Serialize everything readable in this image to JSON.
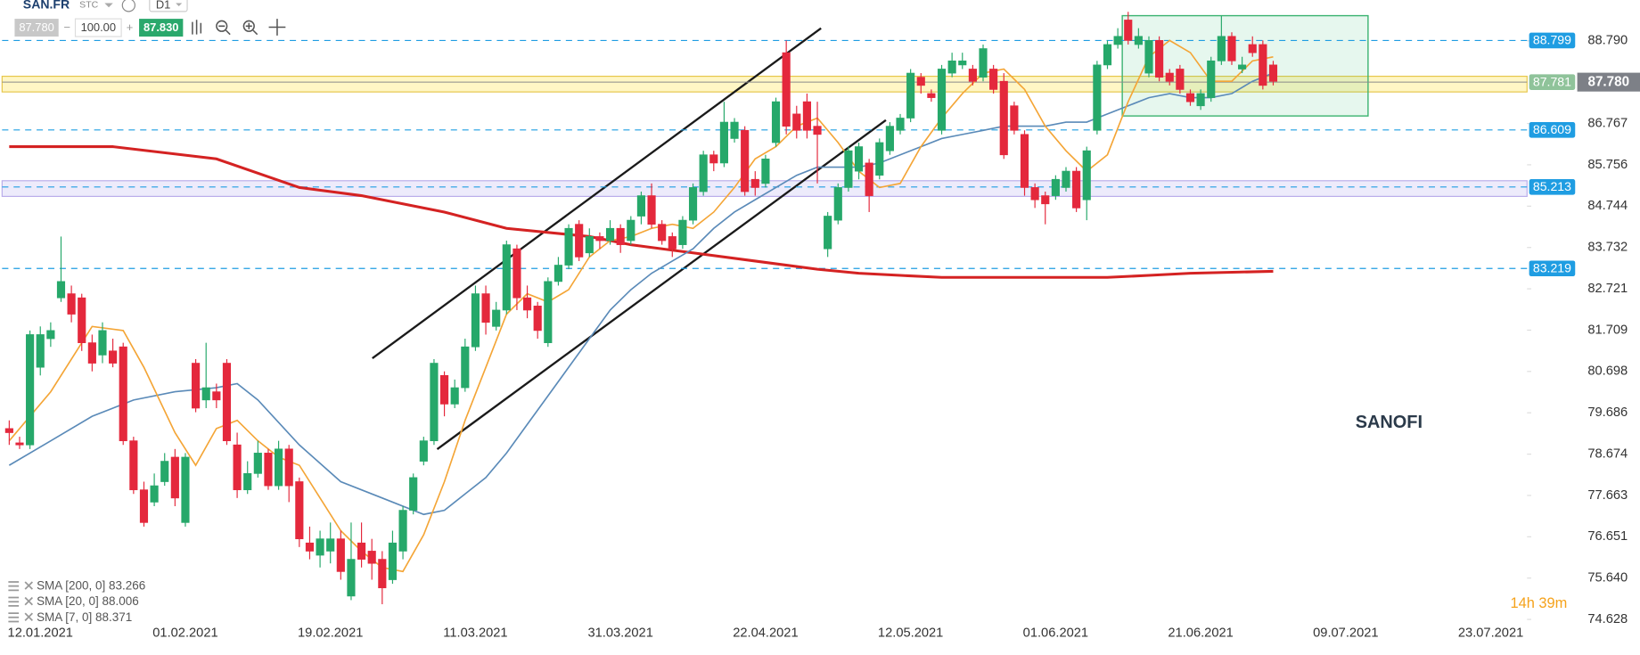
{
  "toolbar": {
    "symbol": "SAN.FR",
    "market": "STC",
    "interval": "D1",
    "bid": "87.780",
    "volume": "100.00",
    "ask": "87.830"
  },
  "chart_data": {
    "type": "candlestick",
    "annotation": "SANOFI",
    "countdown": "14h 39m",
    "up_color": "#26a86a",
    "down_color": "#e4283c",
    "categories": [
      null,
      null,
      null,
      "12.01.2021",
      null,
      null,
      null,
      null,
      null,
      null,
      null,
      null,
      null,
      null,
      null,
      null,
      null,
      "01.02.2021",
      null,
      null,
      null,
      null,
      null,
      null,
      null,
      null,
      null,
      null,
      null,
      null,
      null,
      "19.02.2021",
      null,
      null,
      null,
      null,
      null,
      null,
      null,
      null,
      null,
      null,
      null,
      null,
      null,
      "11.03.2021",
      null,
      null,
      null,
      null,
      null,
      null,
      null,
      null,
      null,
      null,
      null,
      null,
      null,
      "31.03.2021",
      null,
      null,
      null,
      null,
      null,
      null,
      null,
      null,
      null,
      null,
      null,
      null,
      null,
      "22.04.2021",
      null,
      null,
      null,
      null,
      null,
      null,
      null,
      null,
      null,
      null,
      null,
      null,
      null,
      "12.05.2021",
      null,
      null,
      null,
      null,
      null,
      null,
      null,
      null,
      null,
      null,
      null,
      null,
      null,
      "01.06.2021",
      null,
      null,
      null,
      null,
      null,
      null,
      null,
      null,
      null,
      null,
      null,
      null,
      null,
      "21.06.2021",
      null,
      null,
      null,
      null,
      null,
      null,
      null,
      null,
      null,
      null,
      null,
      null,
      null,
      "09.07.2021",
      null,
      null,
      null,
      null,
      null,
      null,
      null,
      null,
      null,
      null,
      null,
      null,
      null,
      "23.07.2021",
      null,
      null,
      null
    ],
    "open": [
      79.3,
      78.95,
      78.9,
      80.8,
      81.5,
      82.5,
      82.6,
      82.5,
      81.4,
      81.1,
      81.2,
      81.3,
      79.0,
      77.8,
      77.5,
      78.0,
      78.6,
      77.0,
      80.9,
      80.0,
      80.2,
      80.9,
      78.9,
      77.8,
      78.2,
      78.7,
      77.9,
      78.8,
      78.0,
      76.5,
      76.2,
      76.3,
      76.6,
      75.2,
      76.5,
      76.3,
      76.1,
      75.6,
      76.3,
      77.3,
      78.5,
      79.0,
      80.6,
      79.9,
      80.3,
      81.3,
      82.6,
      81.8,
      82.2,
      83.7,
      82.5,
      82.3,
      81.4,
      82.9,
      83.3,
      84.3,
      83.6,
      84.0,
      83.9,
      84.2,
      83.9,
      84.5,
      85.0,
      84.3,
      84.0,
      83.8,
      84.4,
      85.1,
      86.0,
      85.8,
      86.4,
      86.6,
      85.4,
      85.3,
      86.3,
      88.5,
      87.0,
      87.3,
      86.7,
      83.7,
      84.4,
      85.2,
      85.6,
      85.8,
      85.5,
      86.1,
      86.6,
      86.9,
      87.9,
      87.5,
      86.6,
      88.0,
      88.2,
      88.1,
      87.9,
      88.1,
      87.8,
      87.2,
      86.5,
      85.2,
      85.0,
      85.0,
      85.2,
      85.6,
      84.9,
      86.6,
      88.2,
      88.7,
      89.3,
      88.7,
      88.0,
      88.8,
      88.0,
      88.1,
      87.5,
      87.2,
      87.4,
      88.3,
      88.9,
      88.1,
      88.7,
      88.7,
      88.2,
      null,
      null,
      null,
      null,
      null,
      null,
      null,
      null,
      null,
      null,
      null,
      null,
      null,
      null,
      null,
      null,
      null,
      null,
      null,
      null,
      null,
      null,
      null,
      null
    ],
    "high": [
      79.5,
      79.1,
      81.7,
      81.8,
      81.9,
      84.0,
      82.8,
      82.6,
      81.6,
      81.9,
      81.5,
      81.4,
      79.1,
      78.0,
      78.2,
      78.7,
      78.8,
      78.7,
      81.0,
      81.4,
      80.4,
      81.0,
      79.2,
      78.5,
      79.0,
      78.8,
      79.0,
      78.9,
      78.1,
      76.9,
      76.8,
      77.0,
      76.8,
      77.0,
      77.0,
      76.6,
      76.3,
      76.8,
      77.4,
      78.2,
      79.1,
      81.0,
      80.7,
      80.5,
      81.5,
      82.8,
      82.8,
      82.4,
      83.9,
      83.8,
      82.8,
      82.4,
      83.0,
      83.5,
      84.3,
      84.4,
      84.2,
      84.1,
      84.4,
      84.3,
      84.5,
      85.1,
      85.3,
      84.4,
      84.1,
      84.5,
      85.3,
      86.1,
      86.1,
      87.3,
      86.9,
      86.7,
      85.6,
      86.0,
      87.4,
      88.8,
      87.2,
      87.5,
      87.3,
      84.6,
      85.3,
      86.2,
      86.3,
      85.9,
      86.4,
      86.8,
      87.0,
      88.1,
      88.0,
      87.6,
      88.2,
      88.5,
      88.5,
      88.2,
      88.7,
      88.2,
      88.0,
      87.3,
      86.6,
      85.3,
      85.1,
      85.5,
      85.7,
      85.7,
      86.2,
      88.3,
      88.8,
      89.1,
      89.5,
      89.1,
      88.9,
      88.9,
      88.1,
      88.2,
      87.6,
      87.6,
      88.4,
      89.4,
      89.0,
      88.4,
      88.9,
      88.8,
      88.3,
      null,
      null,
      null,
      null,
      null,
      null,
      null,
      null,
      null,
      null,
      null,
      null,
      null,
      null,
      null,
      null,
      null,
      null,
      null,
      null,
      null,
      null,
      null,
      null
    ],
    "low": [
      78.9,
      78.8,
      78.8,
      80.6,
      81.3,
      82.4,
      81.9,
      81.2,
      80.7,
      80.9,
      80.8,
      78.9,
      77.7,
      76.9,
      77.4,
      77.9,
      77.4,
      76.9,
      79.7,
      79.8,
      79.8,
      78.9,
      77.6,
      77.7,
      78.1,
      77.8,
      77.8,
      77.5,
      76.4,
      76.1,
      75.9,
      76.0,
      75.6,
      75.1,
      75.9,
      75.6,
      75.0,
      75.5,
      76.1,
      77.2,
      78.4,
      78.9,
      79.6,
      79.8,
      80.2,
      81.2,
      81.6,
      81.7,
      82.1,
      82.2,
      82.0,
      81.5,
      81.3,
      82.8,
      83.2,
      83.4,
      83.5,
      83.7,
      83.8,
      83.6,
      83.8,
      84.3,
      84.2,
      83.8,
      83.5,
      83.7,
      84.3,
      85.0,
      85.6,
      85.7,
      86.3,
      85.0,
      85.0,
      85.2,
      86.2,
      86.5,
      86.4,
      86.4,
      85.3,
      83.5,
      84.3,
      85.1,
      85.4,
      84.6,
      85.4,
      86.0,
      86.5,
      86.8,
      87.5,
      87.3,
      86.5,
      87.9,
      88.1,
      87.7,
      87.8,
      87.5,
      85.9,
      86.5,
      85.0,
      84.7,
      84.3,
      84.9,
      85.1,
      84.6,
      84.4,
      86.5,
      88.1,
      88.6,
      88.7,
      88.6,
      87.9,
      87.8,
      87.7,
      87.5,
      87.2,
      87.1,
      87.3,
      88.2,
      88.2,
      88.0,
      88.4,
      87.6,
      87.7,
      null,
      null,
      null,
      null,
      null,
      null,
      null,
      null,
      null,
      null,
      null,
      null,
      null,
      null,
      null,
      null,
      null,
      null,
      null,
      null,
      null,
      null,
      null,
      null
    ],
    "close": [
      79.2,
      78.9,
      81.6,
      81.6,
      81.7,
      82.9,
      82.1,
      81.4,
      80.9,
      81.7,
      80.9,
      79.0,
      77.8,
      77.0,
      77.9,
      78.5,
      77.6,
      78.6,
      79.8,
      80.3,
      80.0,
      79.0,
      77.8,
      78.2,
      78.7,
      77.9,
      78.8,
      77.9,
      76.6,
      76.3,
      76.6,
      76.6,
      75.8,
      76.1,
      76.1,
      76.0,
      75.4,
      76.5,
      77.3,
      78.1,
      79.0,
      80.9,
      79.9,
      80.3,
      81.3,
      82.6,
      81.9,
      82.2,
      83.8,
      82.5,
      82.2,
      81.7,
      82.9,
      83.3,
      84.2,
      83.5,
      84.0,
      83.9,
      84.2,
      83.8,
      84.4,
      85.0,
      84.3,
      83.9,
      83.7,
      84.4,
      85.2,
      86.0,
      85.8,
      86.8,
      86.8,
      85.1,
      85.2,
      85.9,
      87.3,
      86.7,
      86.6,
      86.6,
      86.5,
      84.5,
      85.2,
      86.1,
      86.2,
      85.0,
      86.3,
      86.7,
      86.9,
      88.0,
      87.7,
      87.4,
      88.1,
      88.3,
      88.3,
      87.8,
      88.6,
      87.6,
      86.0,
      86.6,
      85.2,
      84.9,
      84.8,
      85.4,
      85.6,
      84.7,
      86.1,
      88.2,
      88.7,
      88.9,
      88.8,
      88.9,
      88.8,
      87.9,
      87.8,
      87.6,
      87.3,
      87.5,
      88.3,
      88.9,
      88.3,
      88.2,
      88.5,
      87.7,
      87.8,
      null,
      null,
      null,
      null,
      null,
      null,
      null,
      null,
      null,
      null,
      null,
      null,
      null,
      null,
      null,
      null,
      null,
      null,
      null,
      null,
      null,
      null,
      null,
      null
    ],
    "sma": [
      {
        "name": "SMA [200, 0]",
        "last": 83.266,
        "color": "#d42222",
        "width": 2.6,
        "x": [
          0,
          10,
          20,
          28,
          34,
          42,
          48,
          56,
          60,
          66,
          72,
          78,
          82,
          86,
          90,
          100,
          106,
          110,
          114,
          122
        ],
        "values": [
          86.2,
          86.2,
          85.9,
          85.2,
          85.0,
          84.6,
          84.2,
          84.0,
          83.8,
          83.6,
          83.4,
          83.2,
          83.1,
          83.05,
          83.0,
          83.0,
          83.0,
          83.05,
          83.1,
          83.15
        ]
      },
      {
        "name": "SMA [20, 0]",
        "last": 88.006,
        "color": "#5a8ab8",
        "width": 1.4,
        "x": [
          0,
          4,
          8,
          12,
          16,
          20,
          22,
          24,
          28,
          32,
          36,
          40,
          42,
          44,
          46,
          48,
          50,
          52,
          54,
          56,
          58,
          60,
          62,
          64,
          66,
          68,
          70,
          72,
          74,
          76,
          78,
          80,
          82,
          84,
          86,
          88,
          90,
          92,
          94,
          96,
          98,
          100,
          102,
          104,
          106,
          108,
          110,
          112,
          114,
          116,
          118,
          120,
          122
        ],
        "values": [
          78.4,
          79.0,
          79.6,
          80.0,
          80.2,
          80.3,
          80.4,
          80.0,
          78.9,
          78.0,
          77.6,
          77.2,
          77.3,
          77.7,
          78.1,
          78.7,
          79.4,
          80.1,
          80.8,
          81.5,
          82.2,
          82.7,
          83.1,
          83.4,
          83.7,
          84.2,
          84.6,
          84.9,
          85.2,
          85.5,
          85.7,
          85.7,
          85.7,
          85.8,
          86.0,
          86.2,
          86.4,
          86.5,
          86.6,
          86.7,
          86.7,
          86.7,
          86.8,
          86.8,
          87.0,
          87.2,
          87.4,
          87.5,
          87.4,
          87.4,
          87.5,
          87.8,
          88.0
        ]
      },
      {
        "name": "SMA [7, 0]",
        "last": 88.371,
        "color": "#f4a536",
        "width": 1.4,
        "x": [
          0,
          4,
          8,
          11,
          13,
          16,
          18,
          20,
          22,
          24,
          26,
          28,
          30,
          32,
          34,
          36,
          38,
          40,
          42,
          44,
          46,
          48,
          50,
          52,
          54,
          56,
          58,
          60,
          62,
          64,
          66,
          68,
          70,
          72,
          74,
          76,
          78,
          80,
          82,
          84,
          86,
          88,
          90,
          92,
          94,
          96,
          98,
          100,
          102,
          104,
          106,
          108,
          110,
          112,
          114,
          116,
          118,
          120,
          122
        ],
        "values": [
          79.0,
          80.2,
          81.8,
          81.7,
          80.8,
          79.2,
          78.4,
          79.3,
          79.5,
          79.0,
          78.6,
          78.4,
          77.6,
          76.8,
          76.3,
          75.9,
          75.8,
          76.7,
          78.0,
          79.5,
          80.8,
          82.1,
          82.6,
          82.4,
          82.7,
          83.5,
          83.9,
          84.0,
          84.2,
          84.3,
          84.2,
          84.6,
          85.2,
          85.9,
          86.2,
          86.7,
          86.9,
          86.3,
          85.6,
          85.2,
          85.3,
          86.2,
          86.9,
          87.5,
          88.0,
          88.1,
          87.6,
          86.7,
          86.1,
          85.6,
          86.0,
          87.3,
          88.4,
          88.8,
          88.5,
          87.8,
          87.8,
          88.3,
          88.4
        ]
      }
    ],
    "levels": [
      88.799,
      86.609,
      85.213,
      83.219
    ],
    "level_color": "#1f9de2",
    "last_price": {
      "value": 87.78,
      "label": "87.780"
    },
    "last_marker": 87.781,
    "ylim": [
      74.55,
      89.79
    ],
    "yticks": [
      {
        "value": 88.79,
        "label": "88.790"
      },
      86.767,
      85.756,
      84.744,
      83.732,
      82.721,
      81.709,
      80.698,
      79.686,
      78.674,
      77.663,
      76.651,
      {
        "value": 75.64,
        "label": "75.640"
      },
      74.628
    ],
    "grid": false
  }
}
